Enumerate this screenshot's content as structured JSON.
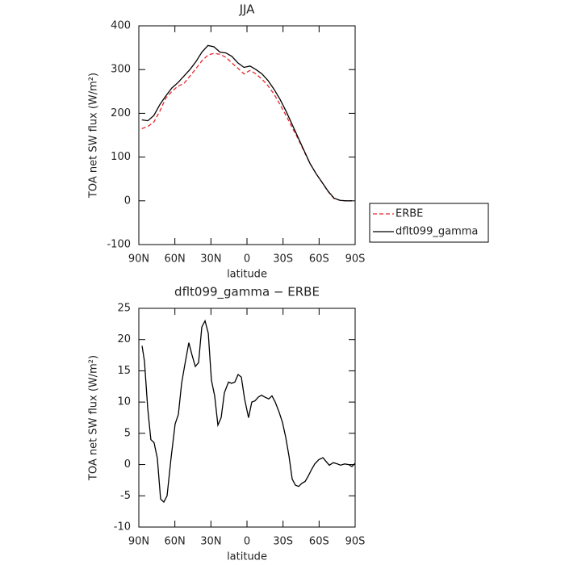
{
  "chart_data": [
    {
      "type": "line",
      "title": "JJA",
      "xlabel": "latitude",
      "ylabel": "TOA net SW flux (W/m²)",
      "x": [
        87.5,
        82.5,
        77.5,
        72.5,
        67.5,
        62.5,
        57.5,
        52.5,
        47.5,
        42.5,
        37.5,
        32.5,
        27.5,
        22.5,
        17.5,
        12.5,
        7.5,
        2.5,
        -2.5,
        -7.5,
        -12.5,
        -17.5,
        -22.5,
        -27.5,
        -32.5,
        -37.5,
        -42.5,
        -47.5,
        -52.5,
        -57.5,
        -62.5,
        -67.5,
        -72.5,
        -77.5,
        -82.5,
        -87.5
      ],
      "series": [
        {
          "name": "ERBE",
          "color": "#e8262a",
          "dashed": true,
          "values": [
            165,
            170,
            180,
            205,
            235,
            250,
            262,
            268,
            285,
            302,
            320,
            333,
            337,
            335,
            328,
            315,
            303,
            290,
            298,
            290,
            278,
            263,
            244,
            220,
            195,
            168,
            142,
            113,
            85,
            62,
            42,
            21,
            5,
            1,
            0,
            0
          ]
        },
        {
          "name": "dflt099_gamma",
          "color": "#000000",
          "dashed": false,
          "values": [
            185,
            183,
            195,
            220,
            240,
            258,
            270,
            285,
            300,
            318,
            340,
            355,
            352,
            340,
            338,
            330,
            315,
            305,
            308,
            300,
            290,
            275,
            255,
            232,
            205,
            175,
            145,
            115,
            85,
            62,
            42,
            22,
            6,
            1,
            0,
            0
          ]
        }
      ],
      "xlim": [
        90,
        -90
      ],
      "xticks": [
        {
          "value": 90,
          "label": "90N"
        },
        {
          "value": 60,
          "label": "60N"
        },
        {
          "value": 30,
          "label": "30N"
        },
        0,
        {
          "value": -30,
          "label": "30S"
        },
        {
          "value": -60,
          "label": "60S"
        },
        {
          "value": -90,
          "label": "90S"
        }
      ],
      "ylim": [
        -100,
        400
      ],
      "yticks": [
        -100,
        0,
        100,
        200,
        300,
        400
      ],
      "legend": "outside-right"
    },
    {
      "type": "line",
      "title": "dflt099_gamma − ERBE",
      "xlabel": "latitude",
      "ylabel": "TOA net SW flux (W/m²)",
      "x": [
        87.3,
        85.3,
        82.6,
        80,
        77.3,
        74.6,
        71.9,
        69.2,
        66.5,
        63.2,
        59.8,
        57.1,
        54.4,
        51.7,
        48.4,
        45.7,
        43,
        40.3,
        37.6,
        34.9,
        32.2,
        29.6,
        26.9,
        24.2,
        21.5,
        18.8,
        15.4,
        12.8,
        10.1,
        7.4,
        4.7,
        2,
        -1.3,
        -4,
        -6.7,
        -9.4,
        -12.1,
        -14.8,
        -18.1,
        -20.8,
        -23.5,
        -26.9,
        -29.6,
        -32.3,
        -35,
        -37.6,
        -40.3,
        -43,
        -45.7,
        -48.4,
        -51.1,
        -53.7,
        -56.4,
        -59.8,
        -63.2,
        -65.8,
        -68.5,
        -71.9,
        -75.2,
        -77.9,
        -81.3,
        -84.6,
        -87.3,
        -90
      ],
      "values": [
        19,
        16.5,
        9,
        4,
        3.5,
        1,
        -5.5,
        -6,
        -5,
        1,
        6.5,
        8,
        13,
        16,
        19.5,
        17.5,
        15.7,
        16.3,
        22,
        23,
        21,
        13.5,
        11,
        6.3,
        7.5,
        11.5,
        13.2,
        13,
        13.2,
        14.4,
        14,
        10.5,
        7.5,
        10,
        10.2,
        10.8,
        11.1,
        10.8,
        10.5,
        11,
        10,
        8.3,
        6.7,
        4.3,
        1.3,
        -2.3,
        -3.3,
        -3.5,
        -3,
        -2.7,
        -1.8,
        -0.8,
        0.1,
        0.8,
        1.1,
        0.5,
        -0.1,
        0.3,
        0.1,
        -0.1,
        0.1,
        0,
        -0.3,
        0.2
      ],
      "color": "#000000",
      "xlim": [
        90,
        -90
      ],
      "xticks": [
        {
          "value": 90,
          "label": "90N"
        },
        {
          "value": 60,
          "label": "60N"
        },
        {
          "value": 30,
          "label": "30N"
        },
        0,
        {
          "value": -30,
          "label": "30S"
        },
        {
          "value": -60,
          "label": "60S"
        },
        {
          "value": -90,
          "label": "90S"
        }
      ],
      "ylim": [
        -10,
        25
      ],
      "yticks": [
        -10,
        -5,
        0,
        5,
        10,
        15,
        20,
        25
      ]
    }
  ]
}
